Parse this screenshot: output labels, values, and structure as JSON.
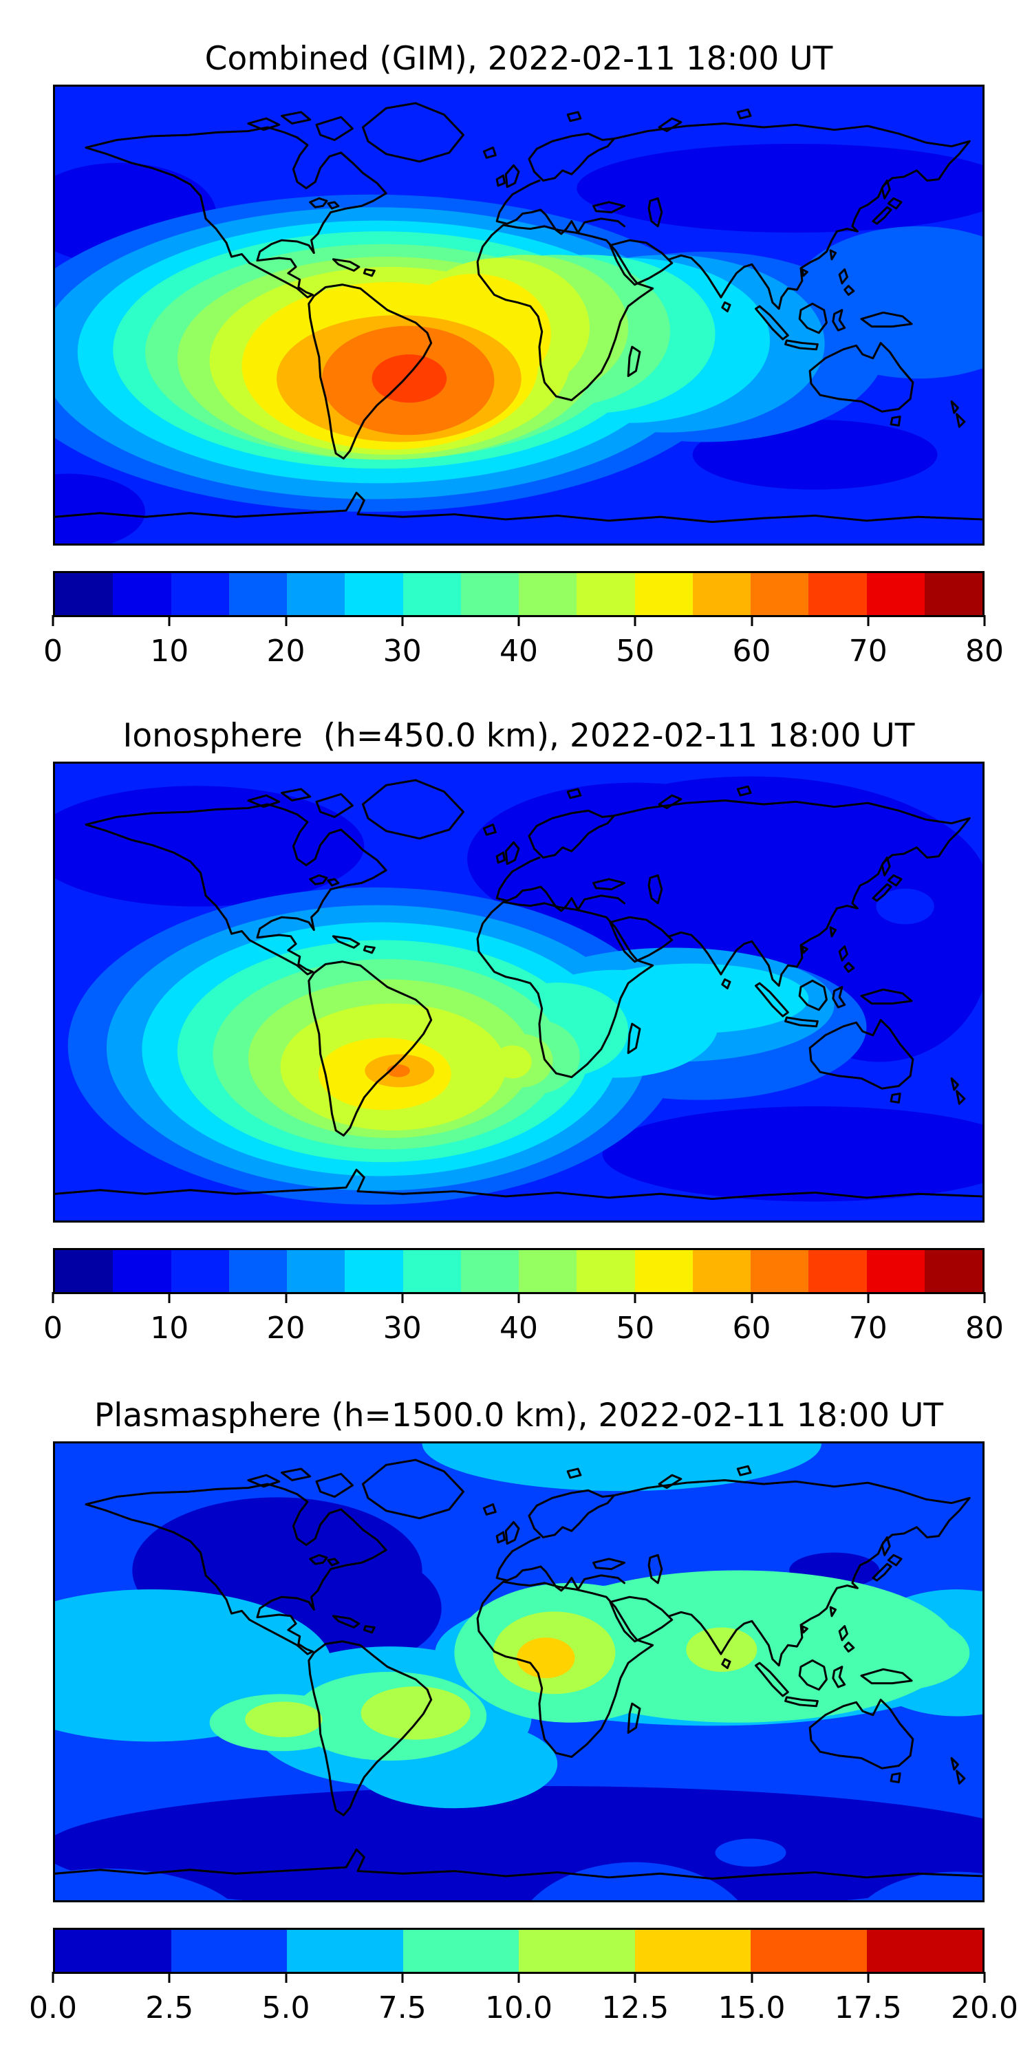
{
  "figure": {
    "background": "#ffffff",
    "text_color": "#000000",
    "coastline_color": "#000000"
  },
  "panels": [
    {
      "id": "combined",
      "title": "Combined (GIM), 2022-02-11 18:00 UT",
      "colorbar": {
        "vmin": 0,
        "vmax": 80,
        "n_segments": 16,
        "palette": "jet16",
        "ticks": [
          "0",
          "10",
          "20",
          "30",
          "40",
          "50",
          "60",
          "70",
          "80"
        ]
      }
    },
    {
      "id": "ionosphere",
      "title": "Ionosphere  (h=450.0 km), 2022-02-11 18:00 UT",
      "colorbar": {
        "vmin": 0,
        "vmax": 80,
        "n_segments": 16,
        "palette": "jet16",
        "ticks": [
          "0",
          "10",
          "20",
          "30",
          "40",
          "50",
          "60",
          "70",
          "80"
        ]
      }
    },
    {
      "id": "plasmasphere",
      "title": "Plasmasphere (h=1500.0 km), 2022-02-11 18:00 UT",
      "colorbar": {
        "vmin": 0,
        "vmax": 20,
        "n_segments": 8,
        "palette": "jet8",
        "ticks": [
          "0.0",
          "2.5",
          "5.0",
          "7.5",
          "10.0",
          "12.5",
          "15.0",
          "17.5",
          "20.0"
        ]
      }
    }
  ],
  "palettes": {
    "jet16": [
      "#0000A4",
      "#0000EC",
      "#0020FF",
      "#0060FF",
      "#00A0FF",
      "#00DFFF",
      "#2EFFC9",
      "#61FF95",
      "#95FF61",
      "#C9FF2E",
      "#FCF000",
      "#FFB500",
      "#FF7A00",
      "#FF3E00",
      "#EC0000",
      "#A40000"
    ],
    "jet8": [
      "#0000C8",
      "#0040FF",
      "#00BFFF",
      "#48FFAF",
      "#AFFF48",
      "#FFD200",
      "#FF5C00",
      "#C80000"
    ]
  },
  "chart_data": [
    {
      "type": "heatmap",
      "variant": "filled_contour_world_map",
      "title": "Combined (GIM), 2022-02-11 18:00 UT",
      "projection": "equirectangular",
      "lon_range": [
        -180,
        180
      ],
      "lat_range": [
        -90,
        90
      ],
      "colormap": "jet",
      "levels": [
        0,
        5,
        10,
        15,
        20,
        25,
        30,
        35,
        40,
        45,
        50,
        55,
        60,
        65,
        70,
        75,
        80
      ],
      "colorbar_ticks": [
        0,
        10,
        20,
        30,
        40,
        50,
        60,
        70,
        80
      ],
      "approx_max_value": 77,
      "approx_max_location": {
        "lon": -48,
        "lat": -23,
        "region": "southeastern South America"
      },
      "secondary_high": {
        "lon": 0,
        "lat": 0,
        "region": "West Africa / Gulf of Guinea",
        "approx_value": 57
      },
      "approx_background_value": 12,
      "low_regions": [
        "northeast Asia band (~5-10)",
        "south of Australia (~5-10)",
        "high northern latitudes"
      ]
    },
    {
      "type": "heatmap",
      "variant": "filled_contour_world_map",
      "title": "Ionosphere  (h=450.0 km), 2022-02-11 18:00 UT",
      "projection": "equirectangular",
      "lon_range": [
        -180,
        180
      ],
      "lat_range": [
        -90,
        90
      ],
      "colormap": "jet",
      "levels": [
        0,
        5,
        10,
        15,
        20,
        25,
        30,
        35,
        40,
        45,
        50,
        55,
        60,
        65,
        70,
        75,
        80
      ],
      "colorbar_ticks": [
        0,
        10,
        20,
        30,
        40,
        50,
        60,
        70,
        80
      ],
      "approx_max_value": 63,
      "approx_max_location": {
        "lon": -50,
        "lat": -25,
        "region": "southern Brazil"
      },
      "secondary_high": {
        "lon": -3,
        "lat": 5,
        "region": "West Africa",
        "approx_value": 47
      },
      "approx_background_value": 10,
      "low_regions": [
        "broad Asia / northwest Pacific region (~5-10)",
        "south of Australia (~5-10)"
      ]
    },
    {
      "type": "heatmap",
      "variant": "filled_contour_world_map",
      "title": "Plasmasphere (h=1500.0 km), 2022-02-11 18:00 UT",
      "projection": "equirectangular",
      "lon_range": [
        -180,
        180
      ],
      "lat_range": [
        -90,
        90
      ],
      "colormap": "jet",
      "levels": [
        0,
        2.5,
        5,
        7.5,
        10,
        12.5,
        15,
        17.5,
        20
      ],
      "colorbar_ticks": [
        0.0,
        2.5,
        5.0,
        7.5,
        10.0,
        12.5,
        15.0,
        17.5,
        20.0
      ],
      "approx_max_value": 16,
      "approx_max_location": {
        "lon": 0,
        "lat": 12,
        "region": "West Africa"
      },
      "other_highs": [
        {
          "lon": -90,
          "lat": -18,
          "approx_value": 11,
          "region": "east Pacific"
        },
        {
          "lon": -40,
          "lat": -16,
          "approx_value": 11,
          "region": "northeast Brazil / Atlantic"
        },
        {
          "lon": 78,
          "lat": 8,
          "approx_value": 11,
          "region": "southern India"
        }
      ],
      "equatorial_band_value": 8,
      "low_regions": [
        "North America (~0-2.5)",
        "north Pacific spot (~0-2.5)",
        "southern mid-high latitudes band (~0-2.5)"
      ]
    }
  ]
}
